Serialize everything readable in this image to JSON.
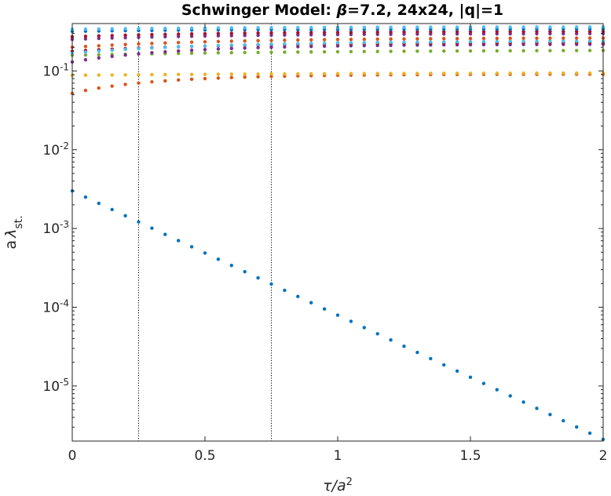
{
  "chart_data": {
    "type": "scatter",
    "title": "Schwinger Model: β=7.2, 24x24, |q|=1",
    "title_parts": {
      "before": "Schwinger Model: ",
      "symbol": "β",
      "after": "=7.2, 24x24, |q|=1"
    },
    "xlabel": "τ/a²",
    "xlabel_parts": {
      "base": "τ/a",
      "sup": "2"
    },
    "ylabel": "a λ st.",
    "ylabel_parts": {
      "prefix": "a",
      "symbol": "λ",
      "sub": "st."
    },
    "xlim": [
      0,
      2
    ],
    "ylim": [
      2e-06,
      0.4
    ],
    "yscale": "log",
    "grid": false,
    "legend": "none",
    "x_ticks": [
      {
        "label": "0",
        "value": 0
      },
      {
        "label": "0.5",
        "value": 0.5
      },
      {
        "label": "1",
        "value": 1
      },
      {
        "label": "1.5",
        "value": 1.5
      },
      {
        "label": "2",
        "value": 2
      }
    ],
    "y_ticks": [
      {
        "base": "10",
        "exp": "-5",
        "value": 1e-05
      },
      {
        "base": "10",
        "exp": "-4",
        "value": 0.0001
      },
      {
        "base": "10",
        "exp": "-3",
        "value": 0.001
      },
      {
        "base": "10",
        "exp": "-2",
        "value": 0.01
      },
      {
        "base": "10",
        "exp": "-1",
        "value": 0.1
      }
    ],
    "vlines": [
      0.25,
      0.75
    ],
    "x_samples": {
      "start": 0,
      "stop": 2,
      "count": 41
    },
    "series": [
      {
        "color": "#0072BD",
        "kind": "exponential",
        "y0": 0.003,
        "y1": 2.1e-06
      },
      {
        "color": "#D95319",
        "kind": "saturating",
        "y0": 0.052,
        "y1": 0.091,
        "rate": 5
      },
      {
        "color": "#EDB120",
        "kind": "saturating",
        "y0": 0.088,
        "y1": 0.094,
        "rate": 2
      },
      {
        "color": "#77AC30",
        "kind": "saturating",
        "y0": 0.158,
        "y1": 0.182,
        "rate": 2
      },
      {
        "color": "#7E2F8E",
        "kind": "saturating",
        "y0": 0.13,
        "y1": 0.218,
        "rate": 4
      },
      {
        "color": "#A2142F",
        "kind": "saturating",
        "y0": 0.178,
        "y1": 0.23,
        "rate": 3
      },
      {
        "color": "#4DBEEE",
        "kind": "saturating",
        "y0": 0.168,
        "y1": 0.24,
        "rate": 3
      },
      {
        "color": "#D95319",
        "kind": "saturating",
        "y0": 0.2,
        "y1": 0.262,
        "rate": 3
      },
      {
        "color": "#7E2F8E",
        "kind": "saturating",
        "y0": 0.252,
        "y1": 0.298,
        "rate": 3
      },
      {
        "color": "#A2142F",
        "kind": "saturating",
        "y0": 0.272,
        "y1": 0.318,
        "rate": 3
      },
      {
        "color": "#0072BD",
        "kind": "saturating",
        "y0": 0.318,
        "y1": 0.342,
        "rate": 3
      },
      {
        "color": "#4DBEEE",
        "kind": "saturating",
        "y0": 0.338,
        "y1": 0.362,
        "rate": 3
      }
    ]
  }
}
